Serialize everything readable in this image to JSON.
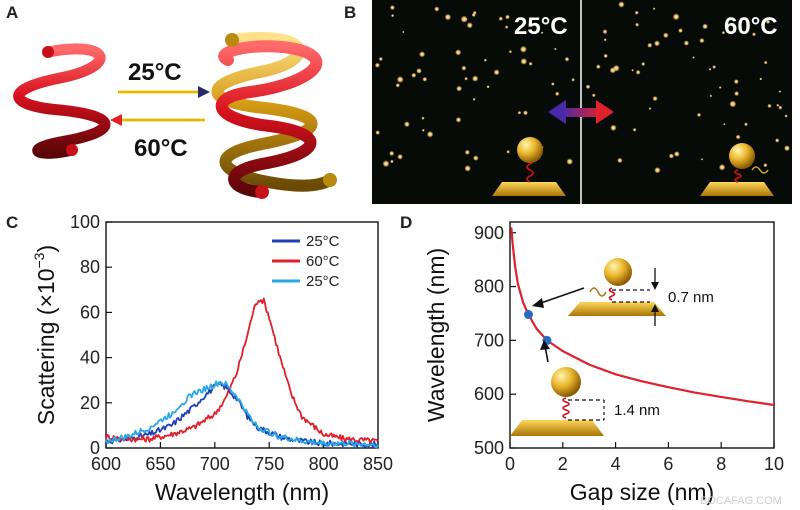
{
  "panels": {
    "A": {
      "label": "A",
      "forward_temp": "25°C",
      "reverse_temp": "60°C"
    },
    "B": {
      "label": "B",
      "left_temp": "25°C",
      "right_temp": "60°C"
    },
    "C": {
      "label": "C"
    },
    "D": {
      "label": "D",
      "gap_upper": "0.7 nm",
      "gap_lower": "1.4 nm"
    }
  },
  "colors": {
    "helix_red": "#d8111e",
    "helix_gold": "#d49a14",
    "series_blue": "#1f3fb8",
    "series_red": "#e0202a",
    "series_lightblue": "#2aa8e8",
    "curve_red": "#e0202a",
    "point_blue": "#2a6cc0",
    "gold": "#d9a520"
  },
  "watermark": "BOCAFAG.COM",
  "chart_data": [
    {
      "panel": "C",
      "type": "line",
      "xlabel": "Wavelength (nm)",
      "ylabel": "Scattering (×10",
      "ylabel_exp": "−3",
      "ylabel_close": ")",
      "xlim": [
        600,
        850
      ],
      "ylim": [
        0,
        100
      ],
      "xticks": [
        600,
        650,
        700,
        750,
        800,
        850
      ],
      "yticks": [
        0,
        20,
        40,
        60,
        80,
        100
      ],
      "legend_position": "top-right",
      "series": [
        {
          "name": "25°C",
          "color": "#1f3fb8",
          "x": [
            600,
            620,
            640,
            660,
            670,
            680,
            690,
            700,
            705,
            710,
            720,
            730,
            740,
            760,
            780,
            800,
            820,
            850
          ],
          "y": [
            3,
            4,
            6,
            10,
            14,
            18,
            23,
            27,
            28,
            27,
            22,
            14,
            9,
            5,
            3,
            2,
            2,
            1.5
          ]
        },
        {
          "name": "60°C",
          "color": "#e0202a",
          "x": [
            600,
            620,
            640,
            660,
            680,
            700,
            710,
            720,
            730,
            735,
            740,
            745,
            750,
            760,
            770,
            780,
            800,
            820,
            850
          ],
          "y": [
            5,
            4,
            4,
            6,
            9,
            15,
            22,
            33,
            50,
            60,
            66,
            65,
            58,
            40,
            24,
            14,
            6,
            4,
            3
          ]
        },
        {
          "name": "25°C",
          "color": "#2aa8e8",
          "x": [
            600,
            620,
            640,
            660,
            670,
            680,
            690,
            700,
            705,
            710,
            720,
            730,
            740,
            760,
            780,
            800,
            820,
            850
          ],
          "y": [
            3,
            5,
            9,
            15,
            20,
            24,
            26,
            28,
            29,
            28,
            23,
            15,
            9,
            5,
            3,
            2,
            2,
            1.5
          ]
        }
      ]
    },
    {
      "panel": "D",
      "type": "line",
      "xlabel": "Gap size (nm)",
      "ylabel": "Wavelength (nm)",
      "xlim": [
        0,
        10
      ],
      "ylim": [
        500,
        920
      ],
      "xticks": [
        0,
        2,
        4,
        6,
        8,
        10
      ],
      "yticks": [
        500,
        600,
        700,
        800,
        900
      ],
      "curve": {
        "x": [
          0.05,
          0.1,
          0.2,
          0.3,
          0.5,
          0.7,
          1.0,
          1.4,
          2,
          3,
          4,
          5,
          6,
          7,
          8,
          9,
          10
        ],
        "y": [
          910,
          880,
          835,
          805,
          770,
          748,
          722,
          700,
          680,
          655,
          637,
          624,
          613,
          603,
          595,
          587,
          580
        ]
      },
      "points": [
        {
          "x": 0.7,
          "y": 748
        },
        {
          "x": 1.4,
          "y": 700
        }
      ]
    }
  ]
}
